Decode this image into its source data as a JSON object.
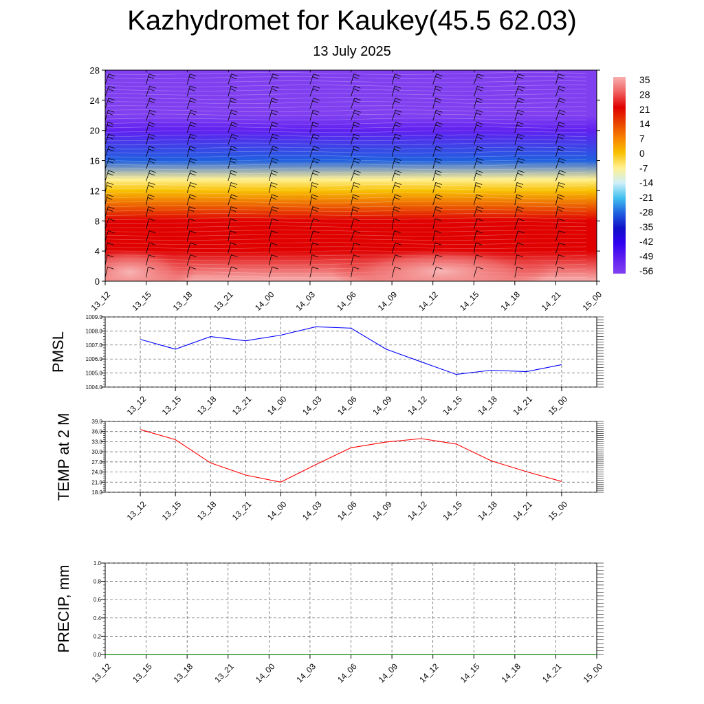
{
  "title": "Kazhydromet for Kaukey(45.5 62.03)",
  "subtitle": "13 July 2025",
  "chart_data": [
    {
      "type": "heatmap",
      "ylim": [
        0,
        28
      ],
      "yticks": [
        "0",
        "4",
        "8",
        "12",
        "16",
        "20",
        "24",
        "28"
      ],
      "x_tick_labels": [
        "13_12",
        "13_15",
        "13_18",
        "13_21",
        "14_00",
        "14_03",
        "14_06",
        "14_09",
        "14_12",
        "14_15",
        "14_18",
        "14_21",
        "15_00"
      ],
      "colorbar_labels": [
        "35",
        "28",
        "21",
        "14",
        "7",
        "0",
        "-7",
        "-14",
        "-21",
        "-28",
        "-35",
        "-42",
        "-49",
        "-56"
      ],
      "colorbar_colors": [
        "#f8b0b0",
        "#f06060",
        "#e00000",
        "#e84000",
        "#f88000",
        "#f8c000",
        "#fff090",
        "#d0f0f8",
        "#40c0f0",
        "#2060e0",
        "#1010c8",
        "#3000f0",
        "#6020f0",
        "#8040f0"
      ],
      "levels": [
        {
          "height": 0,
          "temp": 35
        },
        {
          "height": 4,
          "temp": 24
        },
        {
          "height": 8,
          "temp": 18
        },
        {
          "height": 12,
          "temp": 3
        },
        {
          "height": 13.5,
          "temp": -10
        },
        {
          "height": 16,
          "temp": -28
        },
        {
          "height": 20,
          "temp": -48
        },
        {
          "height": 22,
          "temp": -60
        },
        {
          "height": 28,
          "temp": -56
        }
      ],
      "wind_barbs": "shown"
    },
    {
      "type": "line",
      "ylabel": "PMSL",
      "ylim": [
        1004.0,
        1009.0
      ],
      "yticks": [
        "1004.0",
        "1005.0",
        "1006.0",
        "1007.0",
        "1008.0",
        "1009.0"
      ],
      "categories": [
        "13_12",
        "13_15",
        "13_18",
        "13_21",
        "14_00",
        "14_03",
        "14_06",
        "14_09",
        "14_12",
        "14_15",
        "14_18",
        "14_21",
        "15_00"
      ],
      "values": [
        1007.4,
        1006.7,
        1007.6,
        1007.3,
        1007.7,
        1008.3,
        1008.2,
        1006.7,
        1005.8,
        1004.9,
        1005.2,
        1005.1,
        1005.6
      ],
      "color": "#0000ff",
      "grid": true
    },
    {
      "type": "line",
      "ylabel": "TEMP at 2 M",
      "ylim": [
        18.0,
        39.0
      ],
      "yticks": [
        "18.0",
        "21.0",
        "24.0",
        "27.0",
        "30.0",
        "33.0",
        "36.0",
        "39.0"
      ],
      "categories": [
        "13_12",
        "13_15",
        "13_18",
        "13_21",
        "14_00",
        "14_03",
        "14_06",
        "14_09",
        "14_12",
        "14_15",
        "14_18",
        "14_21",
        "15_00"
      ],
      "values": [
        36.6,
        33.6,
        26.7,
        23.1,
        21.0,
        26.2,
        31.2,
        32.9,
        33.9,
        32.3,
        27.3,
        24.1,
        21.2
      ],
      "color": "#ff0000",
      "grid": true
    },
    {
      "type": "line",
      "ylabel": "PRECIP, mm",
      "ylim": [
        0.0,
        1.0
      ],
      "yticks": [
        "0.0",
        "0.2",
        "0.4",
        "0.6",
        "0.8",
        "1.0"
      ],
      "categories": [
        "13_12",
        "13_15",
        "13_18",
        "13_21",
        "14_00",
        "14_03",
        "14_06",
        "14_09",
        "14_12",
        "14_15",
        "14_18",
        "14_21",
        "15_00"
      ],
      "values": [
        0,
        0,
        0,
        0,
        0,
        0,
        0,
        0,
        0,
        0,
        0,
        0,
        0
      ],
      "color": "#008000",
      "grid": true
    }
  ]
}
